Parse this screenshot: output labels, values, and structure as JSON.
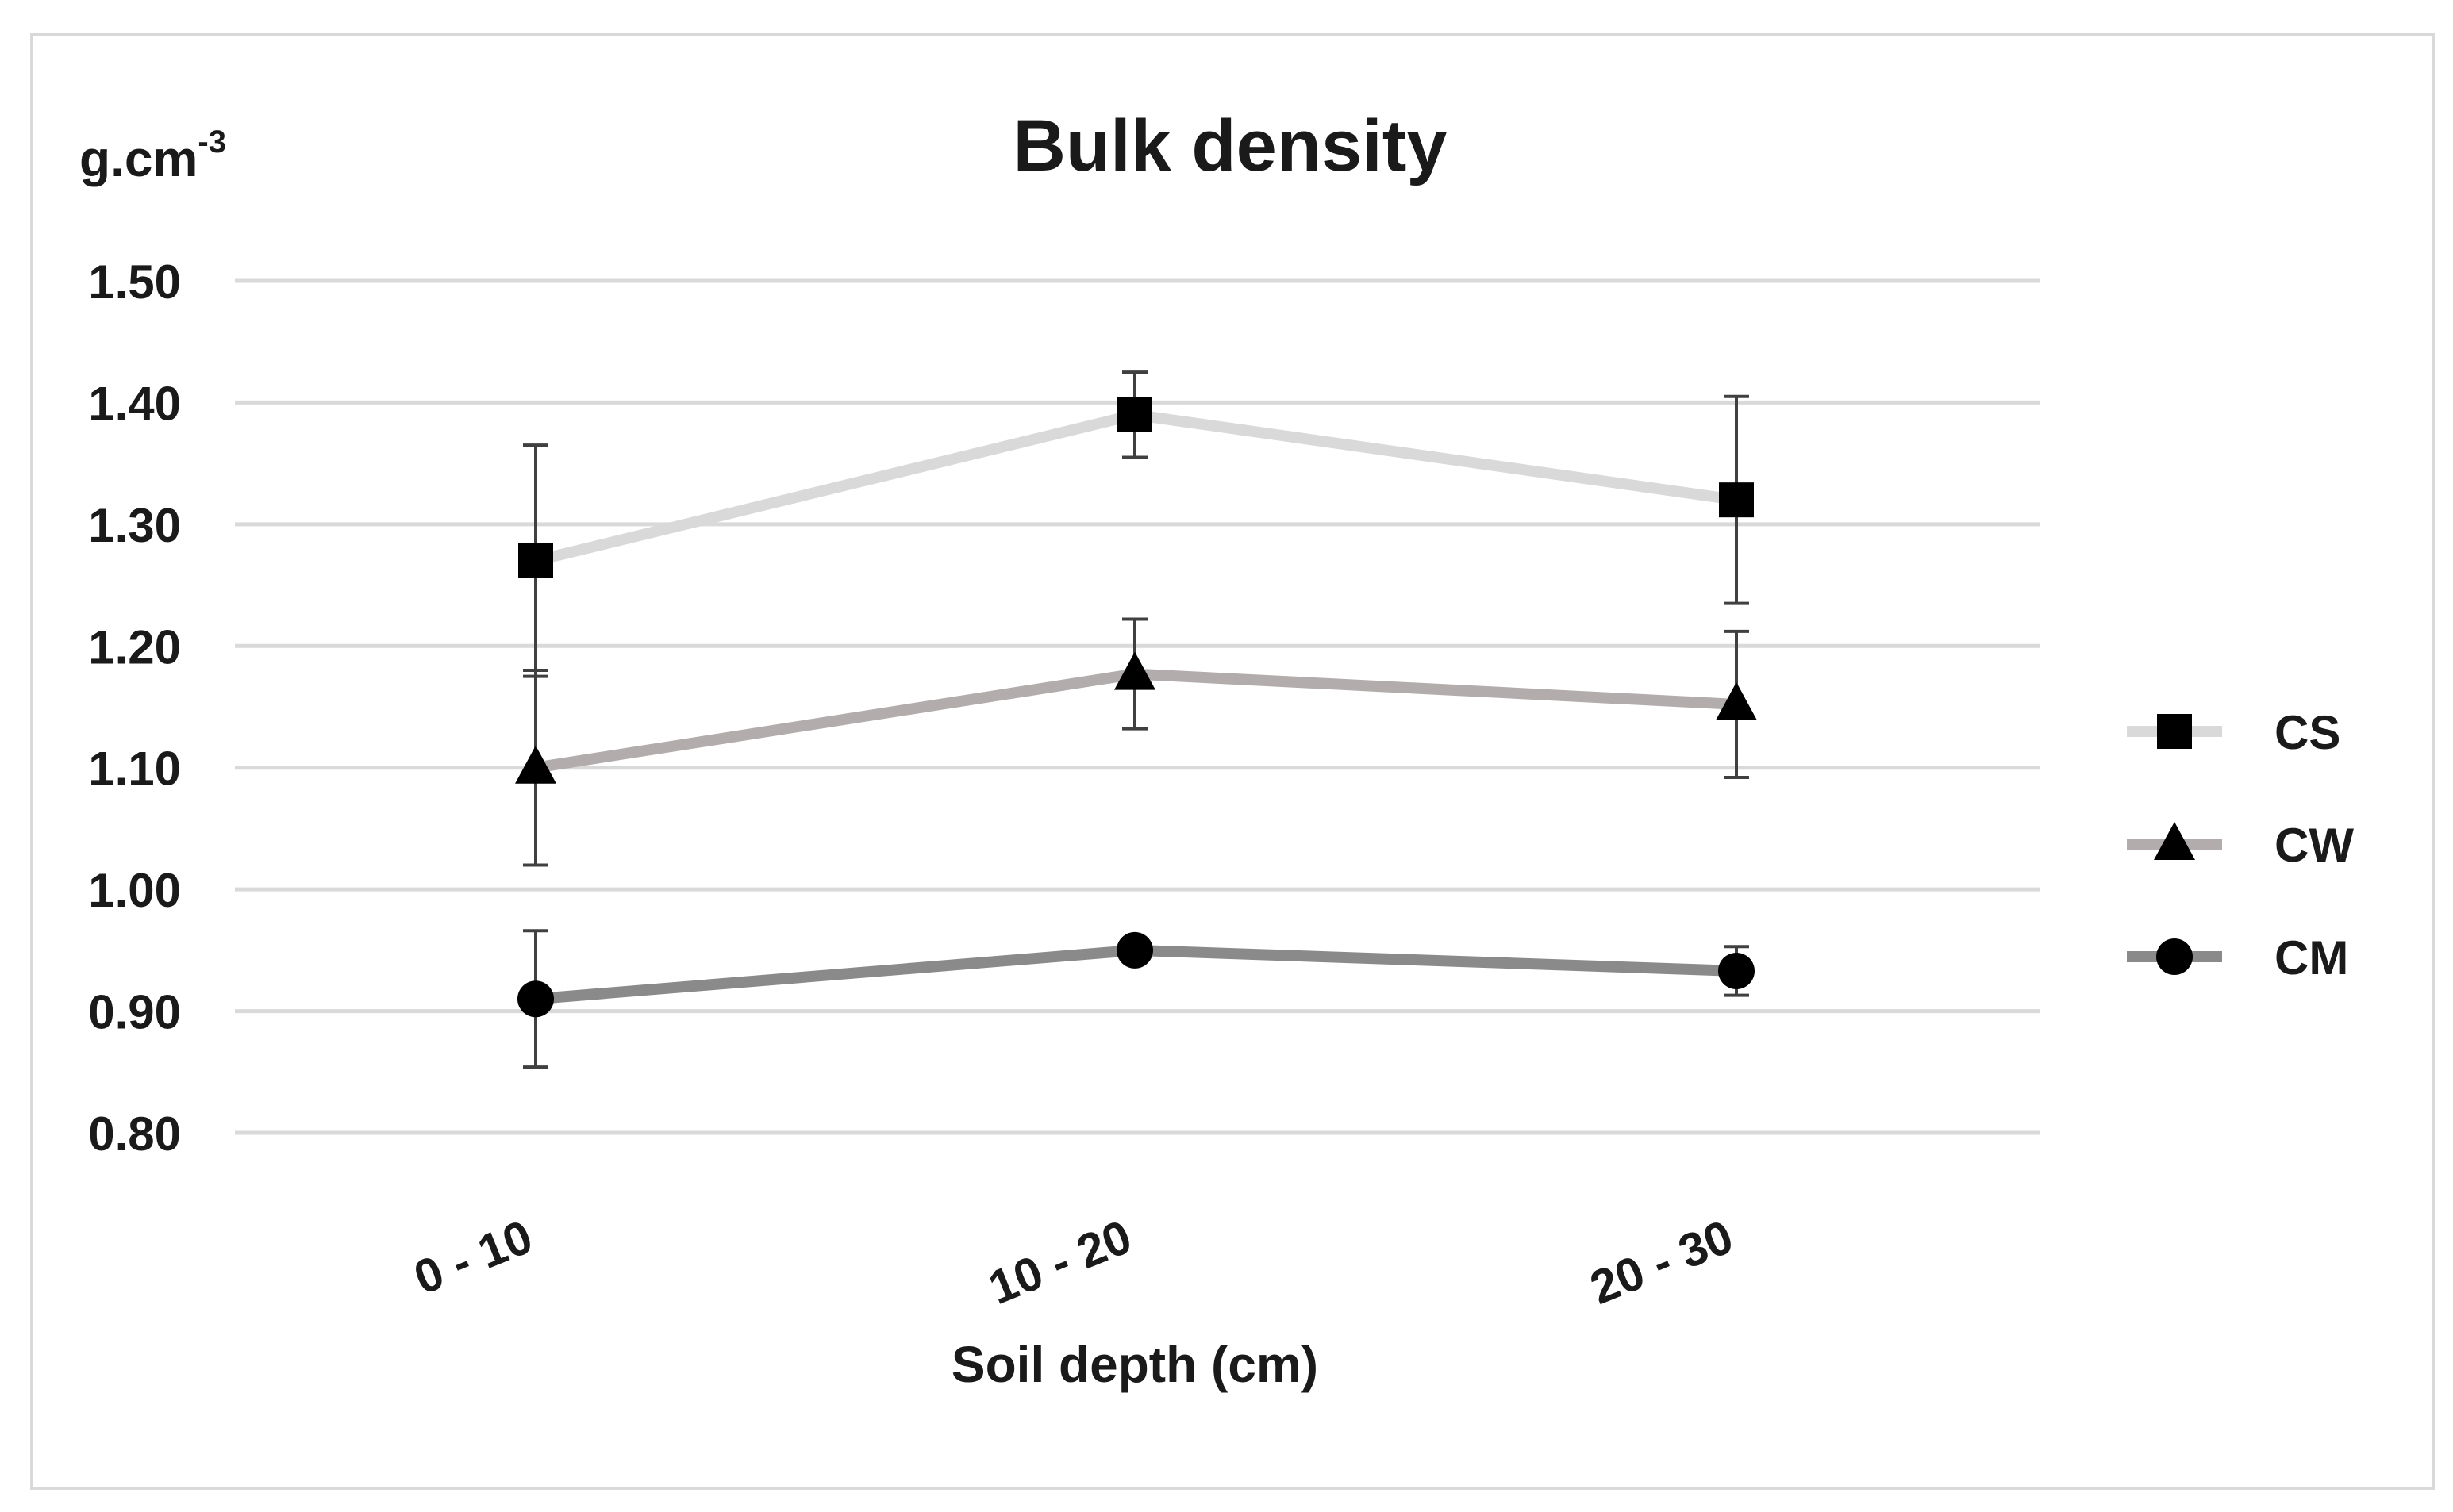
{
  "chart_data": {
    "type": "line",
    "title": "Bulk density",
    "ylabel_base": "g.cm",
    "ylabel_exp": "-3",
    "xlabel": "Soil depth (cm)",
    "categories": [
      "0 - 10",
      "10 - 20",
      "20 - 30"
    ],
    "ylim": [
      0.8,
      1.5
    ],
    "yticks": [
      "1.50",
      "1.40",
      "1.30",
      "1.20",
      "1.10",
      "1.00",
      "0.90",
      "0.80"
    ],
    "grid": true,
    "legend_position": "right",
    "series": [
      {
        "name": "CS",
        "marker": "square",
        "line_color": "#d9d9d9",
        "values": [
          1.27,
          1.39,
          1.32
        ],
        "errors": [
          0.095,
          0.035,
          0.085
        ]
      },
      {
        "name": "CW",
        "marker": "triangle",
        "line_color": "#b3acac",
        "values": [
          1.1,
          1.177,
          1.152
        ],
        "errors": [
          0.08,
          0.045,
          0.06
        ]
      },
      {
        "name": "CM",
        "marker": "circle",
        "line_color": "#8a8a8a",
        "values": [
          0.91,
          0.95,
          0.933
        ],
        "errors": [
          0.056,
          0.008,
          0.02
        ]
      }
    ]
  }
}
